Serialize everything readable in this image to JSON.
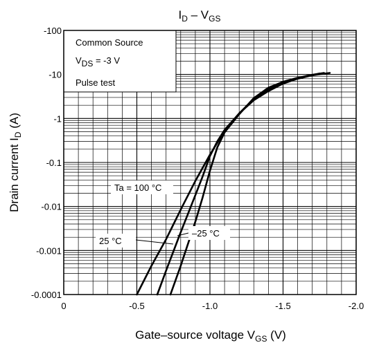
{
  "chart_data": {
    "type": "line",
    "title": {
      "main": "I",
      "sub1": "D",
      "mid": " – V",
      "sub2": "GS"
    },
    "xlabel": {
      "main": "Gate–source voltage   V",
      "sub": "GS",
      "unit": "   (V)"
    },
    "ylabel": {
      "main": "Drain current   I",
      "sub": "D",
      "unit": "   (A)"
    },
    "x_scale": "linear",
    "y_scale": "log",
    "xlim": [
      0,
      -2.0
    ],
    "ylim": [
      -0.0001,
      -100
    ],
    "x_ticks": [
      {
        "value": 0,
        "label": "0"
      },
      {
        "value": -0.5,
        "label": "-0.5"
      },
      {
        "value": -1.0,
        "label": "-1.0"
      },
      {
        "value": -1.5,
        "label": "-1.5"
      },
      {
        "value": -2.0,
        "label": "-2.0"
      }
    ],
    "y_ticks": [
      {
        "value": -0.0001,
        "label": "-0.0001"
      },
      {
        "value": -0.001,
        "label": "-0.001"
      },
      {
        "value": -0.01,
        "label": "-0.01"
      },
      {
        "value": -0.1,
        "label": "-0.1"
      },
      {
        "value": -1,
        "label": "-1"
      },
      {
        "value": -10,
        "label": "-10"
      },
      {
        "value": -100,
        "label": "-100"
      }
    ],
    "grid": true,
    "legend_box": {
      "placement": "top-left",
      "line1": "Common Source",
      "line2_main": "V",
      "line2_sub": "DS",
      "line2_rest": " = -3 V",
      "line3": "Pulse test"
    },
    "series": [
      {
        "name": "Ta = 100 °C",
        "x": [
          -0.5,
          -0.6,
          -0.7,
          -0.8,
          -0.9,
          -1.0,
          -1.1,
          -1.2,
          -1.3,
          -1.4,
          -1.5,
          -1.6,
          -1.7,
          -1.75
        ],
        "y": [
          -0.0001,
          -0.00045,
          -0.0018,
          -0.0085,
          -0.038,
          -0.15,
          -0.52,
          -1.3,
          -2.6,
          -4.2,
          -6.2,
          -8.0,
          -9.6,
          -10.5
        ]
      },
      {
        "name": "25 °C",
        "x": [
          -0.64,
          -0.7,
          -0.8,
          -0.9,
          -0.95,
          -1.0,
          -1.05,
          -1.1,
          -1.2,
          -1.3,
          -1.4,
          -1.5,
          -1.6,
          -1.7,
          -1.78
        ],
        "y": [
          -0.0001,
          -0.00035,
          -0.0026,
          -0.018,
          -0.048,
          -0.14,
          -0.3,
          -0.55,
          -1.3,
          -2.8,
          -4.6,
          -6.6,
          -8.3,
          -9.8,
          -10.8
        ]
      },
      {
        "name": "−25 °C",
        "x": [
          -0.73,
          -0.8,
          -0.9,
          -0.95,
          -1.0,
          -1.05,
          -1.1,
          -1.2,
          -1.3,
          -1.4,
          -1.5,
          -1.6,
          -1.7,
          -1.82
        ],
        "y": [
          -0.0001,
          -0.00045,
          -0.0045,
          -0.016,
          -0.065,
          -0.22,
          -0.48,
          -1.25,
          -2.9,
          -5.0,
          -6.8,
          -8.4,
          -9.6,
          -10.8
        ]
      }
    ],
    "annotations": [
      {
        "text": "Ta = 100 °C",
        "target": "Ta = 100 °C"
      },
      {
        "text": "25 °C",
        "target": "25 °C"
      },
      {
        "text": "–25 °C",
        "target": "−25 °C"
      }
    ]
  }
}
